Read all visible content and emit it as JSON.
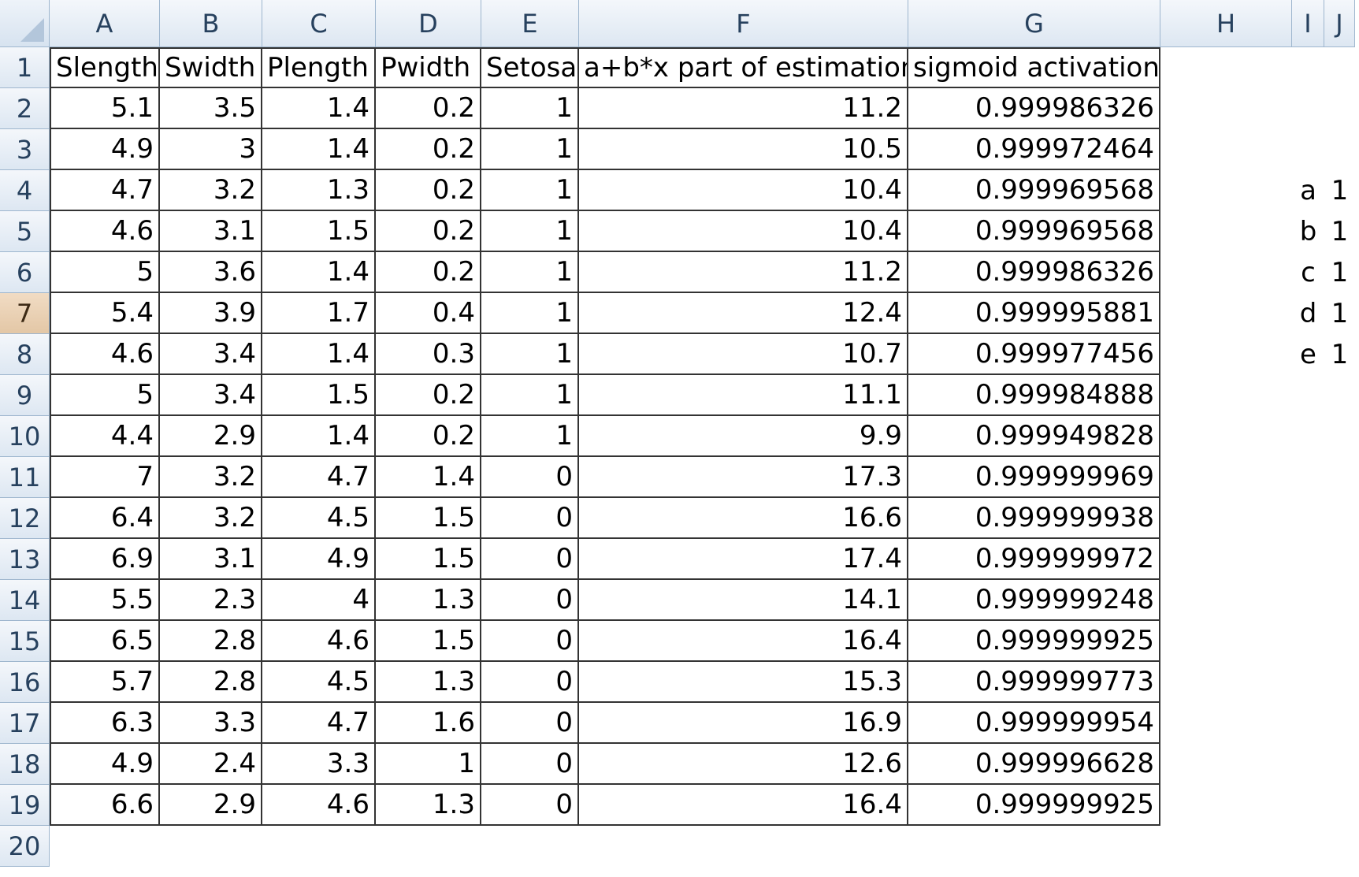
{
  "columns": [
    "A",
    "B",
    "C",
    "D",
    "E",
    "F",
    "G",
    "H",
    "I",
    "J"
  ],
  "row_numbers": [
    "1",
    "2",
    "3",
    "4",
    "5",
    "6",
    "7",
    "8",
    "9",
    "10",
    "11",
    "12",
    "13",
    "14",
    "15",
    "16",
    "17",
    "18",
    "19",
    "20"
  ],
  "selected_row": "7",
  "headers": [
    "Slength",
    "Swidth",
    "Plength",
    "Pwidth",
    "Setosa",
    "a+b*x part of estimation",
    "sigmoid activation"
  ],
  "rows": [
    [
      "5.1",
      "3.5",
      "1.4",
      "0.2",
      "1",
      "11.2",
      "0.999986326"
    ],
    [
      "4.9",
      "3",
      "1.4",
      "0.2",
      "1",
      "10.5",
      "0.999972464"
    ],
    [
      "4.7",
      "3.2",
      "1.3",
      "0.2",
      "1",
      "10.4",
      "0.999969568"
    ],
    [
      "4.6",
      "3.1",
      "1.5",
      "0.2",
      "1",
      "10.4",
      "0.999969568"
    ],
    [
      "5",
      "3.6",
      "1.4",
      "0.2",
      "1",
      "11.2",
      "0.999986326"
    ],
    [
      "5.4",
      "3.9",
      "1.7",
      "0.4",
      "1",
      "12.4",
      "0.999995881"
    ],
    [
      "4.6",
      "3.4",
      "1.4",
      "0.3",
      "1",
      "10.7",
      "0.999977456"
    ],
    [
      "5",
      "3.4",
      "1.5",
      "0.2",
      "1",
      "11.1",
      "0.999984888"
    ],
    [
      "4.4",
      "2.9",
      "1.4",
      "0.2",
      "1",
      "9.9",
      "0.999949828"
    ],
    [
      "7",
      "3.2",
      "4.7",
      "1.4",
      "0",
      "17.3",
      "0.999999969"
    ],
    [
      "6.4",
      "3.2",
      "4.5",
      "1.5",
      "0",
      "16.6",
      "0.999999938"
    ],
    [
      "6.9",
      "3.1",
      "4.9",
      "1.5",
      "0",
      "17.4",
      "0.999999972"
    ],
    [
      "5.5",
      "2.3",
      "4",
      "1.3",
      "0",
      "14.1",
      "0.999999248"
    ],
    [
      "6.5",
      "2.8",
      "4.6",
      "1.5",
      "0",
      "16.4",
      "0.999999925"
    ],
    [
      "5.7",
      "2.8",
      "4.5",
      "1.3",
      "0",
      "15.3",
      "0.999999773"
    ],
    [
      "6.3",
      "3.3",
      "4.7",
      "1.6",
      "0",
      "16.9",
      "0.999999954"
    ],
    [
      "4.9",
      "2.4",
      "3.3",
      "1",
      "0",
      "12.6",
      "0.999996628"
    ],
    [
      "6.6",
      "2.9",
      "4.6",
      "1.3",
      "0",
      "16.4",
      "0.999999925"
    ]
  ],
  "parameters": [
    {
      "name": "a",
      "value": "1",
      "row": 4
    },
    {
      "name": "b",
      "value": "1",
      "row": 5
    },
    {
      "name": "c",
      "value": "1",
      "row": 6
    },
    {
      "name": "d",
      "value": "1",
      "row": 7
    },
    {
      "name": "e",
      "value": "1",
      "row": 8
    }
  ],
  "colors": {
    "header_bg": "#dde7f2",
    "selected_row_bg": "#e3c7a6",
    "table_border": "#333333"
  }
}
